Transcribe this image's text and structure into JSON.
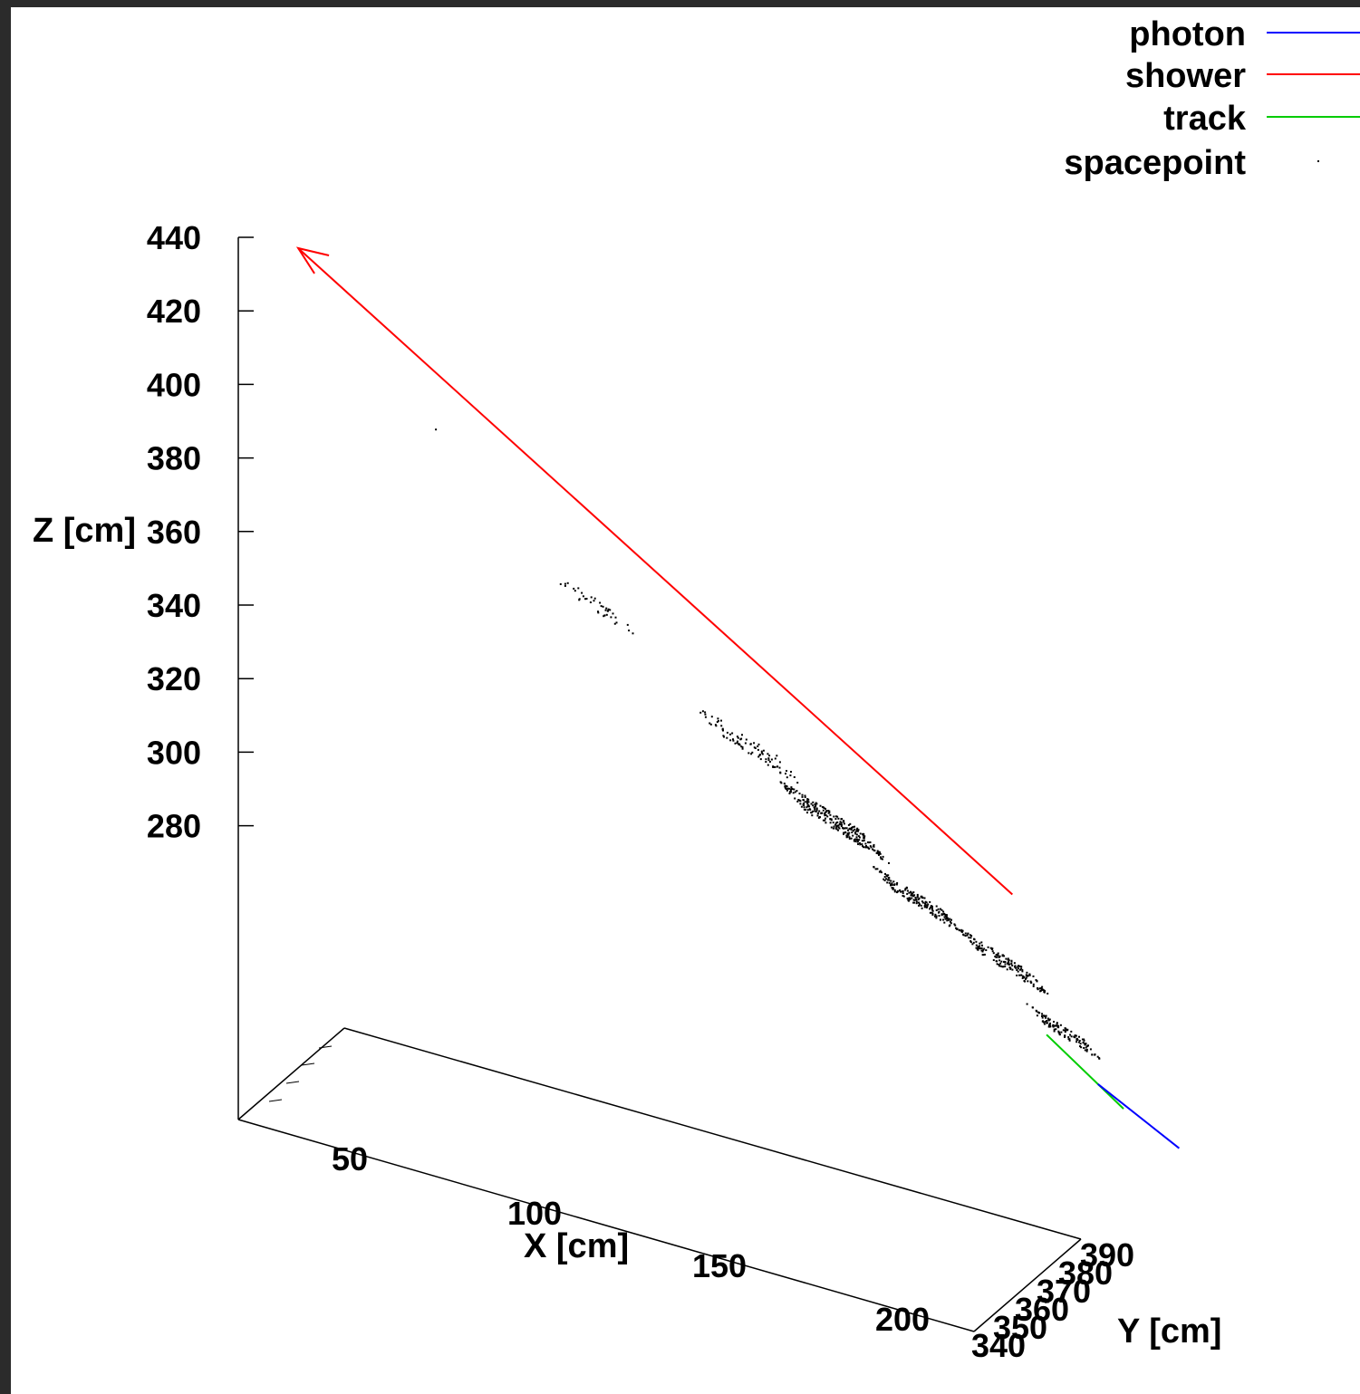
{
  "chart_data": {
    "type": "scatter",
    "projection": "3d",
    "axes": {
      "x": {
        "label": "X [cm]",
        "range": [
          0,
          230
        ],
        "ticks": [
          50,
          100,
          150,
          200
        ]
      },
      "y": {
        "label": "Y [cm]",
        "range": [
          340,
          390
        ],
        "ticks": [
          340,
          350,
          360,
          370,
          380,
          390
        ]
      },
      "z": {
        "label": "Z [cm]",
        "range": [
          200,
          440
        ],
        "ticks": [
          280,
          300,
          320,
          340,
          360,
          380,
          400,
          420,
          440
        ]
      }
    },
    "legend": {
      "placement": "top-right",
      "entries": [
        {
          "name": "photon",
          "color": "#0000ff",
          "style": "line"
        },
        {
          "name": "shower",
          "color": "#ff0000",
          "style": "line"
        },
        {
          "name": "track",
          "color": "#00cc00",
          "style": "line"
        },
        {
          "name": "spacepoint",
          "color": "#000000",
          "style": "dot"
        }
      ]
    },
    "series": [
      {
        "name": "shower",
        "kind": "arrow",
        "from": [
          170,
          362,
          300
        ],
        "to": [
          3,
          362,
          428
        ]
      },
      {
        "name": "track",
        "kind": "line",
        "points": [
          [
            178,
            362,
            264
          ],
          [
            196,
            362,
            249
          ]
        ]
      },
      {
        "name": "photon",
        "kind": "line",
        "points": [
          [
            190,
            362,
            254
          ],
          [
            209,
            362,
            242
          ]
        ]
      },
      {
        "name": "spacepoint",
        "kind": "cluster",
        "clusters": [
          {
            "center": [
              35,
              362,
              388
            ],
            "count": 1,
            "spread": 0
          },
          {
            "center": [
              72,
              362,
              351
            ],
            "count": 40,
            "spread": 5
          },
          {
            "center": [
              108,
              362,
              323
            ],
            "count": 90,
            "spread": 6
          },
          {
            "center": [
              128,
              362,
              308
            ],
            "count": 260,
            "spread": 6
          },
          {
            "center": [
              148,
              362,
              292
            ],
            "count": 180,
            "spread": 5
          },
          {
            "center": [
              168,
              362,
              281
            ],
            "count": 160,
            "spread": 5
          },
          {
            "center": [
              182,
              362,
              266
            ],
            "count": 120,
            "spread": 4
          }
        ]
      }
    ]
  }
}
